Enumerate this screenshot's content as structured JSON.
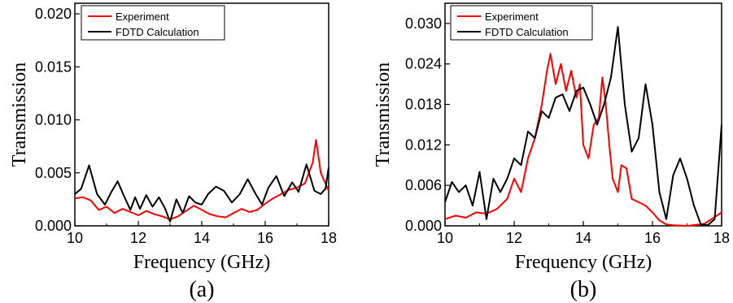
{
  "chart_data": [
    {
      "type": "line",
      "panel_label": "(a)",
      "xlabel": "Frequency (GHz)",
      "ylabel": "Transmission",
      "xlim": [
        10,
        18
      ],
      "ylim": [
        0.0,
        0.021
      ],
      "xticks": [
        "10",
        "12",
        "14",
        "16",
        "18"
      ],
      "yticks": [
        "0.000",
        "0.005",
        "0.010",
        "0.015",
        "0.020"
      ],
      "legend_position": "top-left",
      "series": [
        {
          "name": "Experiment",
          "color": "#ff0000",
          "x": [
            10.0,
            10.25,
            10.5,
            10.75,
            11.0,
            11.25,
            11.5,
            11.75,
            12.0,
            12.25,
            12.5,
            12.75,
            13.0,
            13.25,
            13.5,
            13.75,
            14.0,
            14.25,
            14.5,
            14.75,
            15.0,
            15.25,
            15.5,
            15.75,
            16.0,
            16.25,
            16.5,
            16.75,
            17.0,
            17.25,
            17.5,
            17.6,
            17.75,
            18.0
          ],
          "y": [
            0.0026,
            0.0027,
            0.0024,
            0.0015,
            0.0018,
            0.0012,
            0.0016,
            0.0013,
            0.001,
            0.0014,
            0.0011,
            0.0009,
            0.0006,
            0.0009,
            0.0014,
            0.0019,
            0.0015,
            0.0011,
            0.0009,
            0.0008,
            0.0012,
            0.0016,
            0.0013,
            0.0015,
            0.0021,
            0.0026,
            0.003,
            0.0034,
            0.0036,
            0.004,
            0.006,
            0.0081,
            0.005,
            0.0033
          ]
        },
        {
          "name": "FDTD Calculation",
          "color": "#000000",
          "x": [
            10.0,
            10.2,
            10.45,
            10.7,
            10.95,
            11.15,
            11.35,
            11.55,
            11.75,
            11.9,
            12.05,
            12.25,
            12.45,
            12.65,
            12.85,
            13.0,
            13.2,
            13.4,
            13.6,
            13.8,
            14.0,
            14.2,
            14.45,
            14.7,
            14.95,
            15.2,
            15.45,
            15.7,
            15.9,
            16.1,
            16.35,
            16.6,
            16.85,
            17.05,
            17.3,
            17.55,
            17.75,
            17.9,
            18.0
          ],
          "y": [
            0.003,
            0.0035,
            0.0057,
            0.003,
            0.002,
            0.0032,
            0.0042,
            0.0028,
            0.0015,
            0.0027,
            0.0016,
            0.0029,
            0.0018,
            0.0027,
            0.0016,
            0.0004,
            0.0025,
            0.0012,
            0.0028,
            0.0022,
            0.002,
            0.003,
            0.0037,
            0.0033,
            0.0022,
            0.003,
            0.0044,
            0.003,
            0.002,
            0.0036,
            0.0047,
            0.0028,
            0.0041,
            0.0032,
            0.0058,
            0.0033,
            0.003,
            0.0035,
            0.0055
          ]
        }
      ]
    },
    {
      "type": "line",
      "panel_label": "(b)",
      "xlabel": "Frequency (GHz)",
      "ylabel": "Transmission",
      "xlim": [
        10,
        18
      ],
      "ylim": [
        0.0,
        0.033
      ],
      "xticks": [
        "10",
        "12",
        "14",
        "16",
        "18"
      ],
      "yticks": [
        "0.000",
        "0.006",
        "0.012",
        "0.018",
        "0.024",
        "0.030"
      ],
      "legend_position": "top-left",
      "series": [
        {
          "name": "Experiment",
          "color": "#ff0000",
          "x": [
            10.0,
            10.3,
            10.6,
            10.9,
            11.2,
            11.5,
            11.8,
            12.0,
            12.2,
            12.4,
            12.6,
            12.8,
            12.95,
            13.05,
            13.2,
            13.35,
            13.5,
            13.65,
            13.8,
            13.9,
            14.0,
            14.15,
            14.3,
            14.45,
            14.55,
            14.65,
            14.75,
            14.85,
            15.0,
            15.1,
            15.25,
            15.4,
            15.6,
            15.8,
            16.0,
            16.2,
            16.4,
            16.6,
            17.0,
            17.5,
            18.0
          ],
          "y": [
            0.001,
            0.0015,
            0.0012,
            0.002,
            0.0018,
            0.0025,
            0.004,
            0.007,
            0.005,
            0.01,
            0.013,
            0.018,
            0.023,
            0.0255,
            0.021,
            0.024,
            0.02,
            0.023,
            0.019,
            0.021,
            0.012,
            0.01,
            0.015,
            0.016,
            0.022,
            0.018,
            0.012,
            0.007,
            0.005,
            0.009,
            0.0085,
            0.004,
            0.0035,
            0.003,
            0.002,
            0.0008,
            0.0002,
            0.0001,
            0.0,
            0.0003,
            0.002
          ]
        },
        {
          "name": "FDTD Calculation",
          "color": "#000000",
          "x": [
            10.0,
            10.2,
            10.4,
            10.6,
            10.8,
            11.0,
            11.2,
            11.4,
            11.6,
            11.8,
            12.0,
            12.2,
            12.4,
            12.6,
            12.8,
            13.0,
            13.2,
            13.4,
            13.6,
            13.8,
            14.0,
            14.2,
            14.4,
            14.6,
            14.8,
            15.0,
            15.2,
            15.4,
            15.6,
            15.8,
            16.0,
            16.2,
            16.4,
            16.6,
            16.8,
            17.0,
            17.2,
            17.4,
            17.6,
            17.8,
            18.0
          ],
          "y": [
            0.0035,
            0.0065,
            0.005,
            0.006,
            0.003,
            0.008,
            0.001,
            0.007,
            0.005,
            0.007,
            0.01,
            0.009,
            0.014,
            0.013,
            0.017,
            0.016,
            0.019,
            0.0195,
            0.017,
            0.02,
            0.0205,
            0.018,
            0.015,
            0.018,
            0.022,
            0.0295,
            0.018,
            0.011,
            0.013,
            0.021,
            0.015,
            0.005,
            0.001,
            0.0075,
            0.01,
            0.007,
            0.003,
            0.0002,
            0.0001,
            0.001,
            0.015
          ]
        }
      ]
    }
  ]
}
